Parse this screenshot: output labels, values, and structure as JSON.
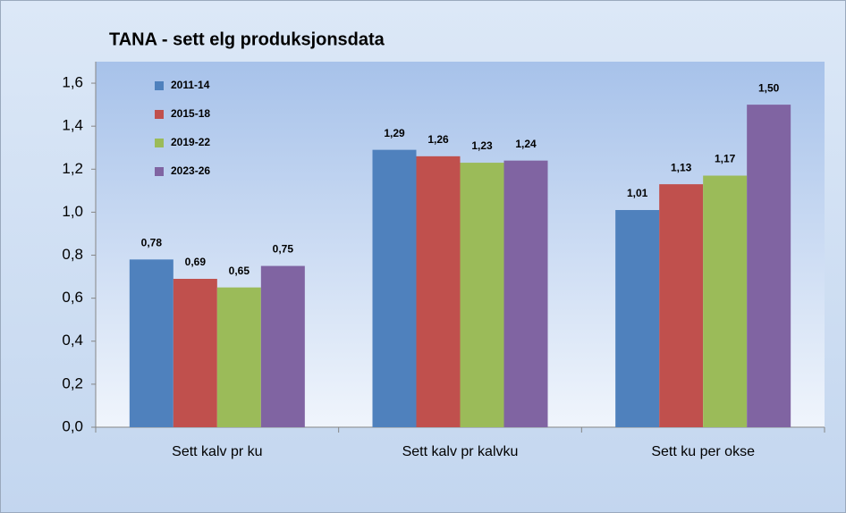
{
  "chart_data": {
    "type": "bar",
    "title": "TANA - sett elg produksjonsdata",
    "categories": [
      "Sett kalv pr ku",
      "Sett kalv pr kalvku",
      "Sett ku per okse"
    ],
    "series": [
      {
        "name": "2011-14",
        "color": "#4f81bd",
        "values": [
          0.78,
          1.29,
          1.01
        ],
        "value_labels": [
          "0,78",
          "1,29",
          "1,01"
        ]
      },
      {
        "name": "2015-18",
        "color": "#c0504d",
        "values": [
          0.69,
          1.26,
          1.13
        ],
        "value_labels": [
          "0,69",
          "1,26",
          "1,13"
        ]
      },
      {
        "name": "2019-22",
        "color": "#9bbb59",
        "values": [
          0.65,
          1.23,
          1.17
        ],
        "value_labels": [
          "0,65",
          "1,23",
          "1,17"
        ]
      },
      {
        "name": "2023-26",
        "color": "#8064a2",
        "values": [
          0.75,
          1.24,
          1.5
        ],
        "value_labels": [
          "0,75",
          "1,24",
          "1,50"
        ]
      }
    ],
    "ylim": [
      0,
      1.7
    ],
    "yticks": [
      {
        "value": 0,
        "label": "0,0"
      },
      {
        "value": 0.2,
        "label": "0,2"
      },
      {
        "value": 0.4,
        "label": "0,4"
      },
      {
        "value": 0.6,
        "label": "0,6"
      },
      {
        "value": 0.8,
        "label": "0,8"
      },
      {
        "value": 1.0,
        "label": "1,0"
      },
      {
        "value": 1.2,
        "label": "1,2"
      },
      {
        "value": 1.4,
        "label": "1,4"
      },
      {
        "value": 1.6,
        "label": "1,6"
      }
    ],
    "grid": false,
    "legend": "upper left"
  }
}
